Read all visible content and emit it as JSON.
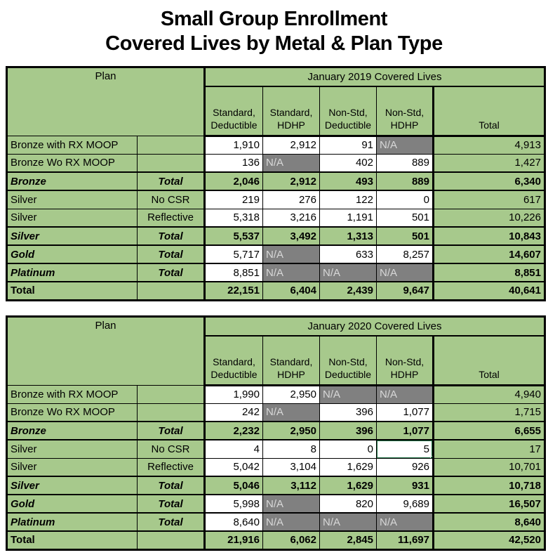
{
  "title": {
    "line1": "Small Group Enrollment",
    "line2": "Covered Lives by Metal & Plan Type"
  },
  "colors": {
    "table_green": "#a7c98c",
    "na_cell_bg": "#808080",
    "na_cell_text": "#d8d8d8",
    "selection_green": "#217346",
    "grid_border": "#000000"
  },
  "na_label": "N/A",
  "tables": [
    {
      "id": "2019",
      "plan_header": "Plan",
      "period_header": "January 2019 Covered Lives",
      "columns": [
        "Standard,\nDeductible",
        "Standard,\nHDHP",
        "Non-Std,\nDeductible",
        "Non-Std,\nHDHP",
        "Total"
      ],
      "rows": [
        {
          "label": "Bronze with RX MOOP",
          "sublabel": "",
          "style": "detail",
          "values": [
            "1,910",
            "2,912",
            "91",
            "N/A"
          ],
          "total": "4,913"
        },
        {
          "label": "Bronze Wo RX MOOP",
          "sublabel": "",
          "style": "detail",
          "values": [
            "136",
            "N/A",
            "402",
            "889"
          ],
          "total": "1,427"
        },
        {
          "label": "Bronze",
          "sublabel": "Total",
          "style": "subtotal",
          "values": [
            "2,046",
            "2,912",
            "493",
            "889"
          ],
          "total": "6,340"
        },
        {
          "label": "Silver",
          "sublabel": "No CSR",
          "style": "detail",
          "values": [
            "219",
            "276",
            "122",
            "0"
          ],
          "total": "617"
        },
        {
          "label": "Silver",
          "sublabel": "Reflective",
          "style": "detail",
          "values": [
            "5,318",
            "3,216",
            "1,191",
            "501"
          ],
          "total": "10,226"
        },
        {
          "label": "Silver",
          "sublabel": "Total",
          "style": "subtotal",
          "values": [
            "5,537",
            "3,492",
            "1,313",
            "501"
          ],
          "total": "10,843"
        },
        {
          "label": "Gold",
          "sublabel": "Total",
          "style": "metal",
          "values": [
            "5,717",
            "N/A",
            "633",
            "8,257"
          ],
          "total": "14,607"
        },
        {
          "label": "Platinum",
          "sublabel": "Total",
          "style": "metal",
          "values": [
            "8,851",
            "N/A",
            "N/A",
            "N/A"
          ],
          "total": "8,851"
        },
        {
          "label": "Total",
          "sublabel": "",
          "style": "grand",
          "values": [
            "22,151",
            "6,404",
            "2,439",
            "9,647"
          ],
          "total": "40,641"
        }
      ]
    },
    {
      "id": "2020",
      "plan_header": "Plan",
      "period_header": "January 2020 Covered Lives",
      "columns": [
        "Standard,\nDeductible",
        "Standard,\nHDHP",
        "Non-Std,\nDeductible",
        "Non-Std,\nHDHP",
        "Total"
      ],
      "selected_cell": {
        "row": 3,
        "col": 3
      },
      "rows": [
        {
          "label": "Bronze with RX MOOP",
          "sublabel": "",
          "style": "detail",
          "values": [
            "1,990",
            "2,950",
            "N/A",
            "N/A"
          ],
          "total": "4,940"
        },
        {
          "label": "Bronze Wo RX MOOP",
          "sublabel": "",
          "style": "detail",
          "values": [
            "242",
            "N/A",
            "396",
            "1,077"
          ],
          "total": "1,715"
        },
        {
          "label": "Bronze",
          "sublabel": "Total",
          "style": "subtotal",
          "values": [
            "2,232",
            "2,950",
            "396",
            "1,077"
          ],
          "total": "6,655"
        },
        {
          "label": "Silver",
          "sublabel": "No CSR",
          "style": "detail",
          "values": [
            "4",
            "8",
            "0",
            "5"
          ],
          "total": "17"
        },
        {
          "label": "Silver",
          "sublabel": "Reflective",
          "style": "detail",
          "values": [
            "5,042",
            "3,104",
            "1,629",
            "926"
          ],
          "total": "10,701"
        },
        {
          "label": "Silver",
          "sublabel": "Total",
          "style": "subtotal",
          "values": [
            "5,046",
            "3,112",
            "1,629",
            "931"
          ],
          "total": "10,718"
        },
        {
          "label": "Gold",
          "sublabel": "Total",
          "style": "metal",
          "values": [
            "5,998",
            "N/A",
            "820",
            "9,689"
          ],
          "total": "16,507"
        },
        {
          "label": "Platinum",
          "sublabel": "Total",
          "style": "metal",
          "values": [
            "8,640",
            "N/A",
            "N/A",
            "N/A"
          ],
          "total": "8,640"
        },
        {
          "label": "Total",
          "sublabel": "",
          "style": "grand",
          "values": [
            "21,916",
            "6,062",
            "2,845",
            "11,697"
          ],
          "total": "42,520"
        }
      ]
    }
  ]
}
